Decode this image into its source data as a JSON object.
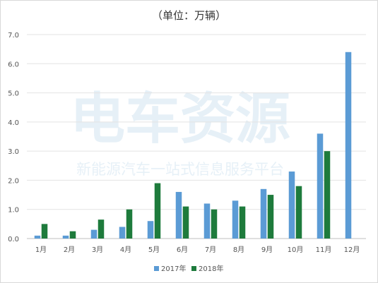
{
  "watermark": {
    "brand": "电车资源",
    "slogan": "新能源汽车一站式信息服务平台"
  },
  "chart_data": {
    "type": "bar",
    "title": "（单位：万辆）",
    "categories": [
      "1月",
      "2月",
      "3月",
      "4月",
      "5月",
      "6月",
      "7月",
      "8月",
      "9月",
      "10月",
      "11月",
      "12月"
    ],
    "series": [
      {
        "name": "2017年",
        "color": "#5b9bd5",
        "values": [
          0.1,
          0.1,
          0.3,
          0.4,
          0.6,
          1.6,
          1.2,
          1.3,
          1.7,
          2.3,
          3.6,
          6.4
        ]
      },
      {
        "name": "2018年",
        "color": "#1e7b3c",
        "values": [
          0.5,
          0.25,
          0.65,
          1.0,
          1.9,
          1.1,
          1.0,
          1.1,
          1.5,
          1.8,
          3.0,
          null
        ]
      }
    ],
    "ylim": [
      0,
      7
    ],
    "yticks": [
      "0.0",
      "1.0",
      "2.0",
      "3.0",
      "4.0",
      "5.0",
      "6.0",
      "7.0"
    ],
    "grid": true,
    "legend_position": "bottom"
  }
}
